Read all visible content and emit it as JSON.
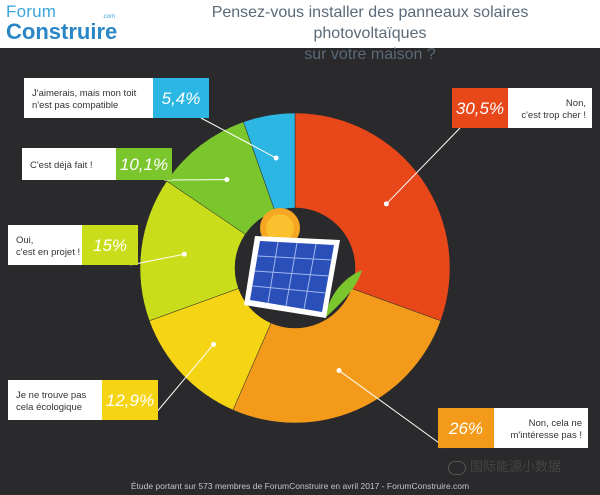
{
  "logo": {
    "line1": "Forum",
    "com": ".com",
    "line2": "Construire"
  },
  "title_line1": "Pensez-vous installer des panneaux solaires photovoltaïques",
  "title_line2": "sur votre maison ?",
  "footer": "Étude portant sur 573 membres de ForumConstruire en avril 2017 - ForumConstruire.com",
  "watermark": "国际能源小数据",
  "colors": {
    "background": "#2a2a2c",
    "label_box": "#ffffff",
    "slices": [
      "#e8471a",
      "#f39a1a",
      "#f5d414",
      "#c9dd1a",
      "#7cc62d",
      "#2cb6e3"
    ]
  },
  "icons": [
    "solar-panel-icon",
    "sun-icon",
    "leaf-icon",
    "wechat-icon"
  ],
  "chart_data": {
    "type": "pie",
    "style": "donut",
    "categories": [
      "Non, c'est trop cher !",
      "Non, cela ne m'intéresse pas !",
      "Je ne trouve pas cela écologique",
      "Oui, c'est en projet !",
      "C'est déjà fait !",
      "J'aimerais, mais mon toit n'est pas compatible"
    ],
    "label_lines": [
      [
        "Non,",
        "c'est trop cher !"
      ],
      [
        "Non, cela ne",
        "m'intéresse pas !"
      ],
      [
        "Je ne trouve pas",
        "cela écologique"
      ],
      [
        "Oui,",
        "c'est en projet !"
      ],
      [
        "C'est déjà fait !"
      ],
      [
        "J'aimerais, mais mon toit",
        "n'est pas compatible"
      ]
    ],
    "values": [
      30.5,
      26,
      12.9,
      15,
      10.1,
      5.4
    ],
    "value_labels": [
      "30,5%",
      "26%",
      "12,9%",
      "15%",
      "10,1%",
      "5,4%"
    ],
    "unit": "%",
    "legend": "none"
  }
}
